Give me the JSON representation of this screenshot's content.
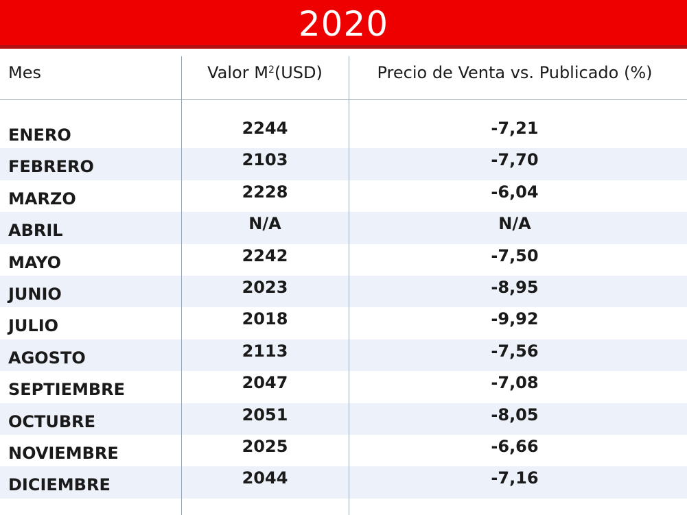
{
  "title": "2020",
  "colors": {
    "banner": "#ee0000",
    "banner_border": "#b01010",
    "row_alt": "#edf1fa",
    "grid": "#9aa7b6"
  },
  "chart_data": {
    "type": "table",
    "title": "2020",
    "columns": {
      "mes": "Mes",
      "valor_main": "Valor M",
      "valor_sup": "2",
      "valor_unit": "(USD)",
      "precio": "Precio de Venta vs. Publicado (%)"
    },
    "rows": [
      {
        "mes": "ENERO",
        "valor": "2244",
        "precio": "-7,21"
      },
      {
        "mes": "FEBRERO",
        "valor": "2103",
        "precio": "-7,70"
      },
      {
        "mes": "MARZO",
        "valor": "2228",
        "precio": "-6,04"
      },
      {
        "mes": "ABRIL",
        "valor": "N/A",
        "precio": "N/A"
      },
      {
        "mes": "MAYO",
        "valor": "2242",
        "precio": "-7,50"
      },
      {
        "mes": "JUNIO",
        "valor": "2023",
        "precio": "-8,95"
      },
      {
        "mes": "JULIO",
        "valor": "2018",
        "precio": "-9,92"
      },
      {
        "mes": "AGOSTO",
        "valor": "2113",
        "precio": "-7,56"
      },
      {
        "mes": "SEPTIEMBRE",
        "valor": "2047",
        "precio": "-7,08"
      },
      {
        "mes": "OCTUBRE",
        "valor": "2051",
        "precio": "-8,05"
      },
      {
        "mes": "NOVIEMBRE",
        "valor": "2025",
        "precio": "-6,66"
      },
      {
        "mes": "DICIEMBRE",
        "valor": "2044",
        "precio": "-7,16"
      }
    ]
  }
}
